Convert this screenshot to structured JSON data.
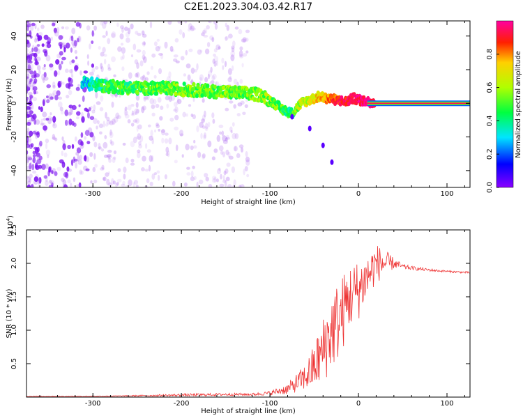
{
  "title": "C2E1.2023.304.03.42.R17",
  "chart_data": [
    {
      "type": "heatmap",
      "title": "C2E1.2023.304.03.42.R17",
      "xlabel": "Height of straight line (km)",
      "ylabel": "Frequency (Hz)",
      "xlim": [
        -375,
        126
      ],
      "ylim": [
        -50,
        49
      ],
      "xticks": [
        -300,
        -200,
        -100,
        0,
        100
      ],
      "yticks": [
        -40,
        -20,
        0,
        20,
        40
      ],
      "colorbar": {
        "label": "Normalized spectral amplitude",
        "range": [
          0,
          1
        ],
        "ticks": [
          "0.0",
          "0.2",
          "0.4",
          "0.6",
          "0.8"
        ],
        "colormap": [
          "#8a00ff",
          "#0000ff",
          "#00e5ff",
          "#00ff40",
          "#b0ff00",
          "#ffd000",
          "#ff2000",
          "#ff00a0"
        ]
      },
      "ridge": {
        "x": [
          -310,
          -280,
          -250,
          -220,
          -190,
          -160,
          -130,
          -110,
          -95,
          -85,
          -75,
          -65,
          -55,
          -45,
          -35,
          -25,
          -15,
          -5,
          0,
          10,
          30,
          126
        ],
        "y": [
          12,
          10,
          9,
          9,
          8,
          7,
          6,
          5,
          0,
          -4,
          -6,
          0,
          2,
          4,
          3,
          2,
          1,
          3,
          2,
          1,
          0,
          0
        ],
        "amplitude": [
          0.3,
          0.45,
          0.45,
          0.5,
          0.5,
          0.5,
          0.5,
          0.55,
          0.5,
          0.45,
          0.4,
          0.6,
          0.6,
          0.7,
          0.8,
          0.85,
          0.9,
          0.9,
          0.95,
          0.98,
          1.0,
          1.0
        ]
      },
      "tail": {
        "x": [
          -75,
          -55,
          -40,
          -30
        ],
        "y": [
          -8,
          -15,
          -25,
          -35
        ]
      }
    },
    {
      "type": "line",
      "xlabel": "Height of straight line (km)",
      "ylabel": "SNR (10 * v/v)",
      "y_exponent_label": "(x10",
      "y_exponent": "4",
      "xlim": [
        -375,
        126
      ],
      "ylim": [
        0,
        2.5
      ],
      "xticks": [
        -300,
        -200,
        -100,
        0,
        100
      ],
      "yticks": [
        0.5,
        1.0,
        1.5,
        2.0,
        2.5
      ],
      "ytick_labels": [
        "0.5",
        "1.0",
        "1.5",
        "2.0",
        "2.5"
      ],
      "series": [
        {
          "color": "#ee3333",
          "x": [
            -375,
            -300,
            -250,
            -200,
            -150,
            -120,
            -100,
            -80,
            -60,
            -50,
            -40,
            -30,
            -20,
            -10,
            0,
            10,
            20,
            30,
            40,
            50,
            60,
            80,
            100,
            126
          ],
          "y": [
            0.01,
            0.01,
            0.02,
            0.03,
            0.04,
            0.04,
            0.06,
            0.12,
            0.3,
            0.45,
            0.7,
            1.0,
            1.2,
            1.5,
            1.6,
            1.8,
            2.0,
            2.0,
            2.0,
            1.95,
            1.93,
            1.9,
            1.88,
            1.86
          ],
          "noise_amplitude": [
            0.005,
            0.005,
            0.01,
            0.02,
            0.02,
            0.02,
            0.03,
            0.08,
            0.2,
            0.35,
            0.5,
            0.6,
            0.6,
            0.5,
            0.45,
            0.35,
            0.3,
            0.2,
            0.08,
            0.04,
            0.03,
            0.02,
            0.015,
            0.015
          ]
        }
      ]
    }
  ]
}
